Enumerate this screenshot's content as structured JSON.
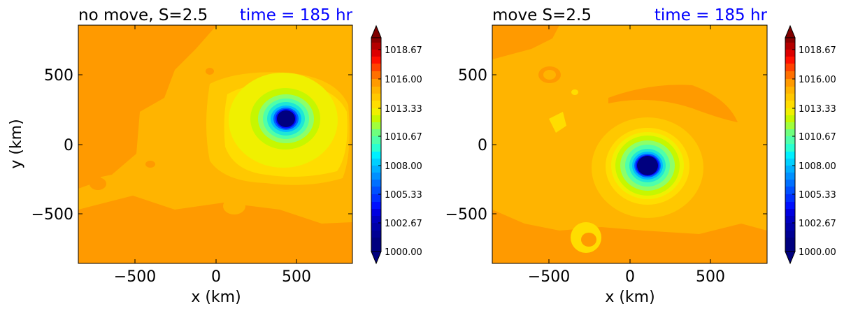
{
  "chart_data": [
    {
      "type": "heatmap",
      "variant": "filled-contour",
      "title": "no move, S=2.5",
      "time_label": "time = 185 hr",
      "time_color": "#0000ff",
      "xlabel": "x (km)",
      "ylabel": "y (km)",
      "xlim": [
        -850,
        850
      ],
      "ylim": [
        -850,
        850
      ],
      "xticks": [
        -500,
        0,
        500
      ],
      "yticks": [
        -500,
        0,
        500
      ],
      "xtick_labels": [
        "−500",
        "0",
        "500"
      ],
      "ytick_labels": [
        "−500",
        "0",
        "500"
      ],
      "low_center": {
        "x": 430,
        "y": 185,
        "min_value": 1000.0
      },
      "background_value": 1014.0,
      "colorbar": {
        "min": 1000.0,
        "max": 1020.0,
        "extend": "both",
        "tick_labels": [
          "1018.67",
          "1016.00",
          "1013.33",
          "1010.67",
          "1008.00",
          "1005.33",
          "1002.67",
          "1000.00"
        ],
        "tick_values": [
          1018.67,
          1016.0,
          1013.33,
          1010.67,
          1008.0,
          1005.33,
          1002.67,
          1000.0
        ]
      }
    },
    {
      "type": "heatmap",
      "variant": "filled-contour",
      "title": "move S=2.5",
      "time_label": "time = 185 hr",
      "time_color": "#0000ff",
      "xlabel": "x (km)",
      "ylabel": "",
      "xlim": [
        -850,
        850
      ],
      "ylim": [
        -850,
        850
      ],
      "xticks": [
        -500,
        0,
        500
      ],
      "yticks": [
        -500,
        0,
        500
      ],
      "xtick_labels": [
        "−500",
        "0",
        "500"
      ],
      "ytick_labels": [
        "−500",
        "0",
        "500"
      ],
      "low_center": {
        "x": 115,
        "y": -155,
        "min_value": 1000.0
      },
      "background_value": 1014.0,
      "colorbar": {
        "min": 1000.0,
        "max": 1020.0,
        "extend": "both",
        "tick_labels": [
          "1018.67",
          "1016.00",
          "1013.33",
          "1010.67",
          "1008.00",
          "1005.33",
          "1002.67",
          "1000.00"
        ],
        "tick_values": [
          1018.67,
          1016.0,
          1013.33,
          1010.67,
          1008.0,
          1005.33,
          1002.67,
          1000.0
        ]
      }
    }
  ]
}
